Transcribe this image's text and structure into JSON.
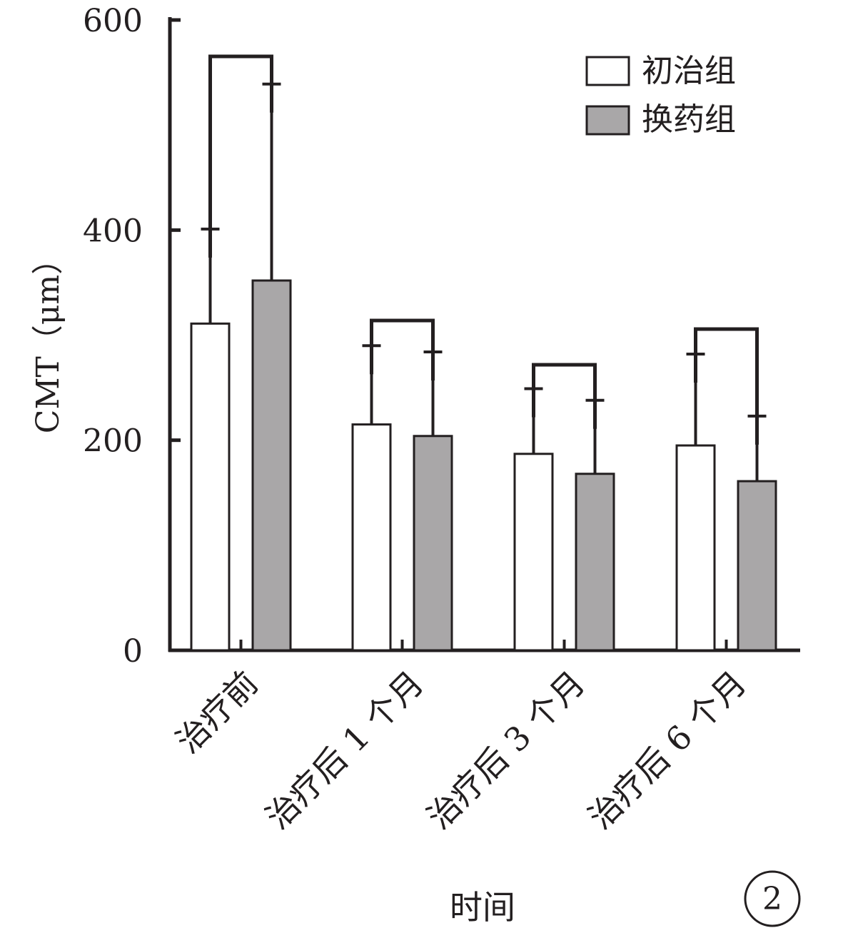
{
  "chart_data": {
    "type": "bar",
    "categories": [
      "治疗前",
      "治疗后 1 个月",
      "治疗后 3 个月",
      "治疗后 6 个月"
    ],
    "series": [
      {
        "name": "初治组",
        "values": [
          311,
          215,
          187,
          195
        ],
        "errors": [
          90,
          75,
          62,
          87
        ],
        "color": "#ffffff"
      },
      {
        "name": "换药组",
        "values": [
          352,
          204,
          168,
          161
        ],
        "errors": [
          187,
          80,
          70,
          62
        ],
        "color": "#a9a7a8"
      }
    ],
    "xlabel": "时间",
    "ylabel": "CMT（μm）",
    "ylim": [
      0,
      600
    ],
    "yticks": [
      "0",
      "200",
      "400",
      "600"
    ],
    "grid": false,
    "legend": "top-right",
    "panel_label": "2"
  }
}
